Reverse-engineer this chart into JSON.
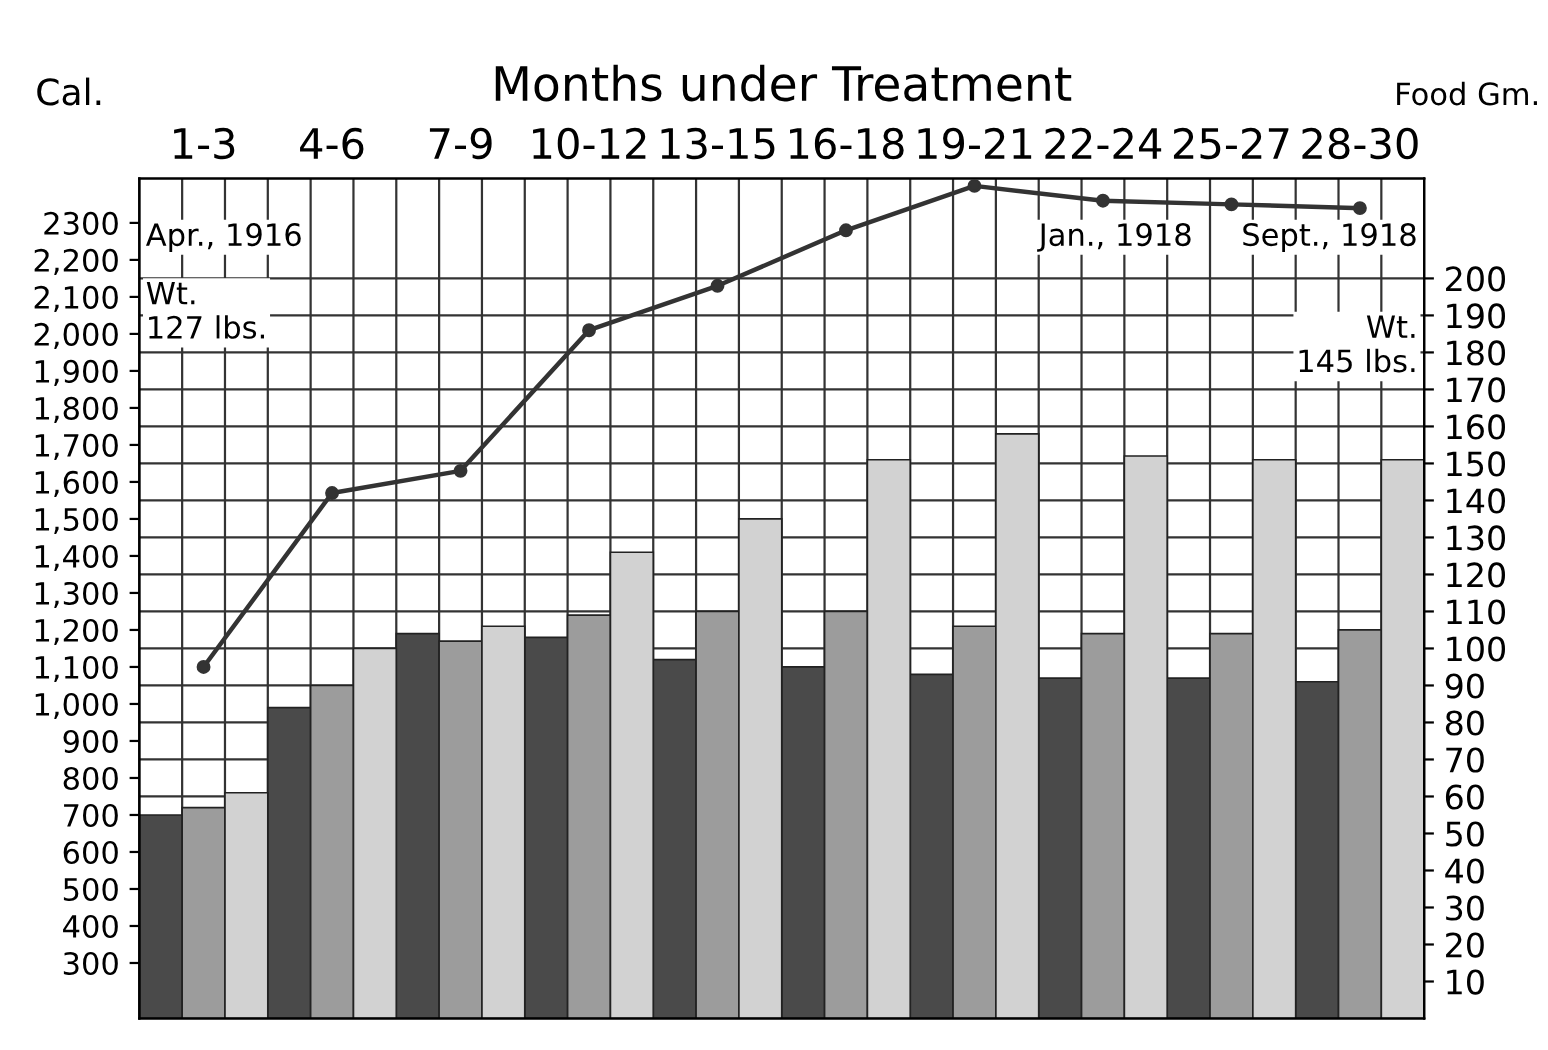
{
  "chart_data": {
    "type": "bar",
    "title": "Months under Treatment",
    "ylabel": "Cal.",
    "y2label": "Food Gm.",
    "categories": [
      "1-3",
      "4-6",
      "7-9",
      "10-12",
      "13-15",
      "16-18",
      "19-21",
      "22-24",
      "25-27",
      "28-30"
    ],
    "series": [
      {
        "axis": "y2",
        "color": "#4a4a4a",
        "values": [
          55,
          84,
          104,
          103,
          97,
          95,
          93,
          92,
          92,
          91
        ]
      },
      {
        "axis": "y2",
        "color": "#9c9c9c",
        "values": [
          57,
          90,
          102,
          109,
          110,
          110,
          106,
          104,
          104,
          105
        ]
      },
      {
        "axis": "y2",
        "color": "#d2d2d2",
        "values": [
          61,
          100,
          106,
          126,
          135,
          151,
          158,
          152,
          151,
          151
        ]
      },
      {
        "type": "line",
        "axis": "y",
        "color": "#333333",
        "marker": "circle",
        "values": [
          1100,
          1570,
          1630,
          2010,
          2130,
          2280,
          2400,
          2360,
          2350,
          2340
        ]
      }
    ],
    "ylim": [
      150,
      2420
    ],
    "yticks": [
      300,
      400,
      500,
      600,
      700,
      800,
      {
        "value": 900,
        "label": "900"
      },
      {
        "value": 1000,
        "label": "1,000"
      },
      {
        "value": 1100,
        "label": "1,100"
      },
      {
        "value": 1200,
        "label": "1,200"
      },
      {
        "value": 1300,
        "label": "1,300"
      },
      {
        "value": 1400,
        "label": "1,400"
      },
      {
        "value": 1500,
        "label": "1,500"
      },
      {
        "value": 1600,
        "label": "1,600"
      },
      {
        "value": 1700,
        "label": "1,700"
      },
      {
        "value": 1800,
        "label": "1,800"
      },
      {
        "value": 1900,
        "label": "1,900"
      },
      {
        "value": 2000,
        "label": "2,000"
      },
      {
        "value": 2100,
        "label": "2,100"
      },
      {
        "value": 2200,
        "label": "2,200"
      },
      2300
    ],
    "y2lim": [
      0,
      227
    ],
    "y2ticks": [
      10,
      20,
      30,
      40,
      50,
      60,
      70,
      80,
      90,
      100,
      110,
      120,
      130,
      140,
      150,
      160,
      170,
      180,
      190,
      200
    ],
    "grid": true,
    "annotations": [
      "Apr., 1916",
      "Wt.\n127 lbs.",
      "Jan., 1918",
      "Sept., 1918",
      "Wt.\n145 lbs."
    ]
  }
}
